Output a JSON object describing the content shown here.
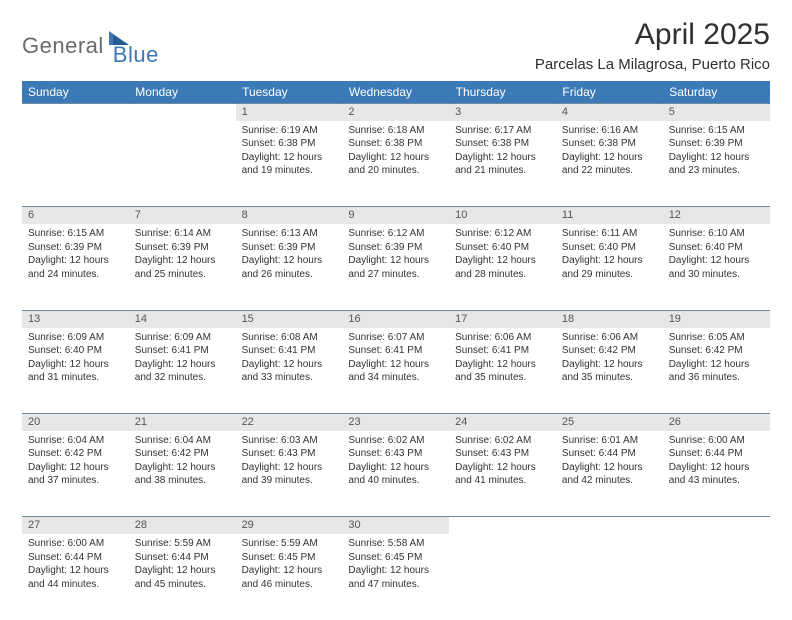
{
  "logo": {
    "text1": "General",
    "text2": "Blue"
  },
  "title": "April 2025",
  "location": "Parcelas La Milagrosa, Puerto Rico",
  "colors": {
    "header_bg": "#3b79b7",
    "daynum_bg": "#e7e7e7",
    "rule": "#6f8aa3"
  },
  "day_headers": [
    "Sunday",
    "Monday",
    "Tuesday",
    "Wednesday",
    "Thursday",
    "Friday",
    "Saturday"
  ],
  "weeks": [
    [
      null,
      null,
      {
        "n": "1",
        "sunrise": "6:19 AM",
        "sunset": "6:38 PM",
        "day_h": 12,
        "day_m": 19
      },
      {
        "n": "2",
        "sunrise": "6:18 AM",
        "sunset": "6:38 PM",
        "day_h": 12,
        "day_m": 20
      },
      {
        "n": "3",
        "sunrise": "6:17 AM",
        "sunset": "6:38 PM",
        "day_h": 12,
        "day_m": 21
      },
      {
        "n": "4",
        "sunrise": "6:16 AM",
        "sunset": "6:38 PM",
        "day_h": 12,
        "day_m": 22
      },
      {
        "n": "5",
        "sunrise": "6:15 AM",
        "sunset": "6:39 PM",
        "day_h": 12,
        "day_m": 23
      }
    ],
    [
      {
        "n": "6",
        "sunrise": "6:15 AM",
        "sunset": "6:39 PM",
        "day_h": 12,
        "day_m": 24
      },
      {
        "n": "7",
        "sunrise": "6:14 AM",
        "sunset": "6:39 PM",
        "day_h": 12,
        "day_m": 25
      },
      {
        "n": "8",
        "sunrise": "6:13 AM",
        "sunset": "6:39 PM",
        "day_h": 12,
        "day_m": 26
      },
      {
        "n": "9",
        "sunrise": "6:12 AM",
        "sunset": "6:39 PM",
        "day_h": 12,
        "day_m": 27
      },
      {
        "n": "10",
        "sunrise": "6:12 AM",
        "sunset": "6:40 PM",
        "day_h": 12,
        "day_m": 28
      },
      {
        "n": "11",
        "sunrise": "6:11 AM",
        "sunset": "6:40 PM",
        "day_h": 12,
        "day_m": 29
      },
      {
        "n": "12",
        "sunrise": "6:10 AM",
        "sunset": "6:40 PM",
        "day_h": 12,
        "day_m": 30
      }
    ],
    [
      {
        "n": "13",
        "sunrise": "6:09 AM",
        "sunset": "6:40 PM",
        "day_h": 12,
        "day_m": 31
      },
      {
        "n": "14",
        "sunrise": "6:09 AM",
        "sunset": "6:41 PM",
        "day_h": 12,
        "day_m": 32
      },
      {
        "n": "15",
        "sunrise": "6:08 AM",
        "sunset": "6:41 PM",
        "day_h": 12,
        "day_m": 33
      },
      {
        "n": "16",
        "sunrise": "6:07 AM",
        "sunset": "6:41 PM",
        "day_h": 12,
        "day_m": 34
      },
      {
        "n": "17",
        "sunrise": "6:06 AM",
        "sunset": "6:41 PM",
        "day_h": 12,
        "day_m": 35
      },
      {
        "n": "18",
        "sunrise": "6:06 AM",
        "sunset": "6:42 PM",
        "day_h": 12,
        "day_m": 35
      },
      {
        "n": "19",
        "sunrise": "6:05 AM",
        "sunset": "6:42 PM",
        "day_h": 12,
        "day_m": 36
      }
    ],
    [
      {
        "n": "20",
        "sunrise": "6:04 AM",
        "sunset": "6:42 PM",
        "day_h": 12,
        "day_m": 37
      },
      {
        "n": "21",
        "sunrise": "6:04 AM",
        "sunset": "6:42 PM",
        "day_h": 12,
        "day_m": 38
      },
      {
        "n": "22",
        "sunrise": "6:03 AM",
        "sunset": "6:43 PM",
        "day_h": 12,
        "day_m": 39
      },
      {
        "n": "23",
        "sunrise": "6:02 AM",
        "sunset": "6:43 PM",
        "day_h": 12,
        "day_m": 40
      },
      {
        "n": "24",
        "sunrise": "6:02 AM",
        "sunset": "6:43 PM",
        "day_h": 12,
        "day_m": 41
      },
      {
        "n": "25",
        "sunrise": "6:01 AM",
        "sunset": "6:44 PM",
        "day_h": 12,
        "day_m": 42
      },
      {
        "n": "26",
        "sunrise": "6:00 AM",
        "sunset": "6:44 PM",
        "day_h": 12,
        "day_m": 43
      }
    ],
    [
      {
        "n": "27",
        "sunrise": "6:00 AM",
        "sunset": "6:44 PM",
        "day_h": 12,
        "day_m": 44
      },
      {
        "n": "28",
        "sunrise": "5:59 AM",
        "sunset": "6:44 PM",
        "day_h": 12,
        "day_m": 45
      },
      {
        "n": "29",
        "sunrise": "5:59 AM",
        "sunset": "6:45 PM",
        "day_h": 12,
        "day_m": 46
      },
      {
        "n": "30",
        "sunrise": "5:58 AM",
        "sunset": "6:45 PM",
        "day_h": 12,
        "day_m": 47
      },
      null,
      null,
      null
    ]
  ],
  "labels": {
    "sunrise": "Sunrise:",
    "sunset": "Sunset:",
    "daylight": "Daylight:",
    "hours": "hours",
    "and": "and",
    "minutes": "minutes."
  }
}
